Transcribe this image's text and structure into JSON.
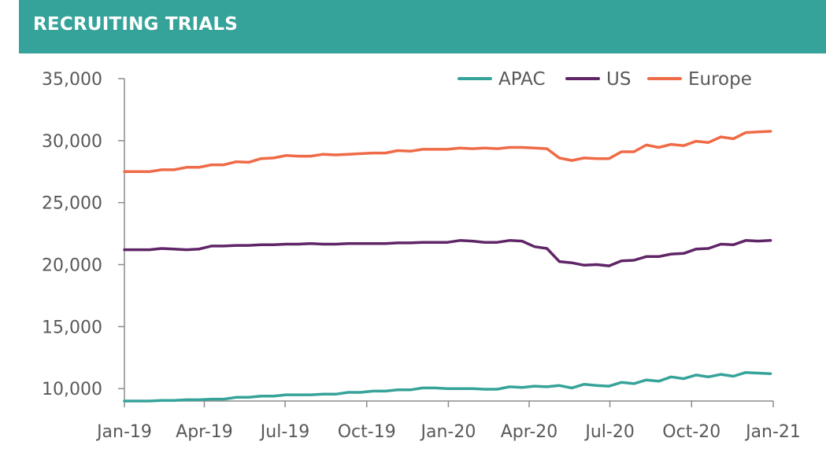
{
  "header": {
    "title": "RECRUITING TRIALS",
    "background": "#36a39a"
  },
  "chart_data": {
    "type": "line",
    "title": "RECRUITING TRIALS",
    "xlabel": "",
    "ylabel": "",
    "ylim": [
      9000,
      35000
    ],
    "yticks": [
      10000,
      15000,
      20000,
      25000,
      30000,
      35000
    ],
    "ytick_labels": [
      "10,000",
      "15,000",
      "20,000",
      "25,000",
      "30,000",
      "35,000"
    ],
    "x_range": [
      "2019-01-01",
      "2021-01-01"
    ],
    "x_ticks": [
      "2019-01-01",
      "2019-04-01",
      "2019-07-01",
      "2019-10-01",
      "2020-01-01",
      "2020-04-01",
      "2020-07-01",
      "2020-10-01",
      "2021-01-01"
    ],
    "x_tick_labels": [
      "Jan-19",
      "Apr-19",
      "Jul-19",
      "Oct-19",
      "Jan-20",
      "Apr-20",
      "Jul-20",
      "Oct-20",
      "Jan-21"
    ],
    "x": [
      "2019-01-01",
      "2019-01-15",
      "2019-01-29",
      "2019-02-12",
      "2019-02-26",
      "2019-03-12",
      "2019-03-26",
      "2019-04-09",
      "2019-04-23",
      "2019-05-07",
      "2019-05-21",
      "2019-06-04",
      "2019-06-18",
      "2019-07-02",
      "2019-07-16",
      "2019-07-30",
      "2019-08-13",
      "2019-08-27",
      "2019-09-10",
      "2019-09-24",
      "2019-10-08",
      "2019-10-22",
      "2019-11-05",
      "2019-11-19",
      "2019-12-03",
      "2019-12-17",
      "2019-12-31",
      "2020-01-14",
      "2020-01-28",
      "2020-02-11",
      "2020-02-25",
      "2020-03-10",
      "2020-03-24",
      "2020-04-07",
      "2020-04-21",
      "2020-05-05",
      "2020-05-19",
      "2020-06-02",
      "2020-06-16",
      "2020-06-30",
      "2020-07-14",
      "2020-07-28",
      "2020-08-11",
      "2020-08-25",
      "2020-09-08",
      "2020-09-22",
      "2020-10-06",
      "2020-10-20",
      "2020-11-03",
      "2020-11-17",
      "2020-12-01",
      "2020-12-15",
      "2020-12-29"
    ],
    "series": [
      {
        "name": "APAC",
        "color": "#36a39a",
        "values": [
          9000,
          9000,
          9000,
          9050,
          9050,
          9100,
          9100,
          9150,
          9150,
          9300,
          9300,
          9400,
          9400,
          9500,
          9500,
          9500,
          9550,
          9550,
          9700,
          9700,
          9800,
          9800,
          9900,
          9900,
          10050,
          10050,
          10000,
          10000,
          10000,
          9950,
          9950,
          10150,
          10100,
          10200,
          10150,
          10250,
          10050,
          10350,
          10250,
          10200,
          10500,
          10400,
          10700,
          10600,
          10950,
          10800,
          11100,
          10950,
          11150,
          11000,
          11300,
          11250,
          11200
        ]
      },
      {
        "name": "US",
        "color": "#5f2566",
        "values": [
          21200,
          21200,
          21200,
          21300,
          21250,
          21200,
          21250,
          21500,
          21500,
          21550,
          21550,
          21600,
          21600,
          21650,
          21650,
          21700,
          21650,
          21650,
          21700,
          21700,
          21700,
          21700,
          21750,
          21750,
          21800,
          21800,
          21800,
          21950,
          21900,
          21800,
          21800,
          21950,
          21900,
          21450,
          21300,
          20250,
          20150,
          19950,
          20000,
          19900,
          20300,
          20350,
          20650,
          20650,
          20850,
          20900,
          21250,
          21300,
          21650,
          21600,
          21950,
          21900,
          21950
        ]
      },
      {
        "name": "Europe",
        "color": "#ef6a46",
        "values": [
          27500,
          27500,
          27500,
          27650,
          27650,
          27850,
          27850,
          28050,
          28050,
          28300,
          28250,
          28550,
          28600,
          28800,
          28750,
          28750,
          28900,
          28850,
          28900,
          28950,
          29000,
          29000,
          29200,
          29150,
          29300,
          29300,
          29300,
          29400,
          29350,
          29400,
          29350,
          29450,
          29450,
          29400,
          29350,
          28600,
          28400,
          28600,
          28550,
          28550,
          29100,
          29100,
          29650,
          29450,
          29700,
          29600,
          29950,
          29850,
          30300,
          30150,
          30650,
          30700,
          30750
        ]
      }
    ],
    "legend": {
      "position": "top-right",
      "entries": [
        "APAC",
        "US",
        "Europe"
      ]
    },
    "grid": false
  }
}
